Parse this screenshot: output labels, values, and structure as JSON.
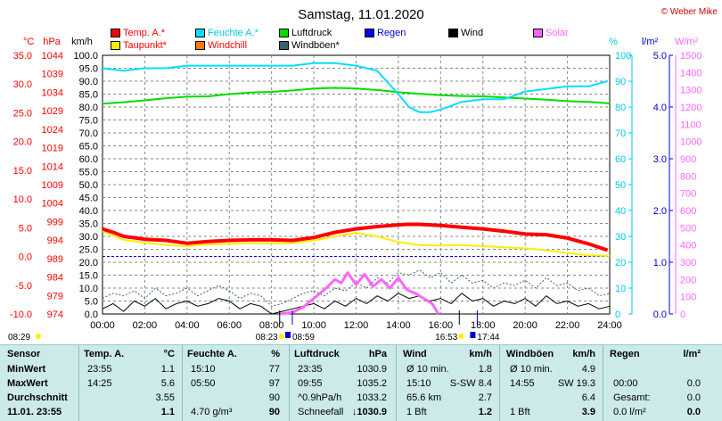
{
  "title": "Samstag, 11.01.2020",
  "copyright": "© Weber Mike",
  "colors": {
    "temp": "#ff0000",
    "humidity": "#00e0ff",
    "pressure": "#00dd00",
    "rain": "#0000ff",
    "wind": "#000000",
    "solar": "#ff66ff",
    "dewpoint": "#ffee00",
    "windchill": "#ff7700",
    "gust": "#336666"
  },
  "legend": [
    {
      "label": "Temp. A.*",
      "color": "#ff0000",
      "text_color": "#ff0000"
    },
    {
      "label": "Feuchte A.*",
      "color": "#00e0ff",
      "text_color": "#00c8e8"
    },
    {
      "label": "Luftdruck",
      "color": "#00dd00",
      "text_color": "#000000"
    },
    {
      "label": "Regen",
      "color": "#0000ff",
      "text_color": "#0000cc"
    },
    {
      "label": "Wind",
      "color": "#000000",
      "text_color": "#000000"
    },
    {
      "label": "Solar",
      "color": "#ff66ff",
      "text_color": "#ff66ff"
    },
    {
      "label": "Taupunkt*",
      "color": "#ffee00",
      "text_color": "#ff0000"
    },
    {
      "label": "Windchill",
      "color": "#ff7700",
      "text_color": "#ff0000"
    },
    {
      "label": "Windböen*",
      "color": "#336666",
      "text_color": "#000000"
    }
  ],
  "units": {
    "temp": "°C",
    "pressure": "hPa",
    "wind": "km/h",
    "humidity": "%",
    "rain": "l/m²",
    "solar": "W/m²"
  },
  "chart_data": {
    "type": "line",
    "x_ticks": [
      "00:00",
      "02:00",
      "04:00",
      "06:00",
      "08:00",
      "10:00",
      "12:00",
      "14:00",
      "16:00",
      "18:00",
      "20:00",
      "22:00",
      "24:00"
    ],
    "axes": {
      "temp": {
        "unit": "°C",
        "min": -10,
        "max": 35,
        "ticks": [
          "35.0",
          "30.0",
          "25.0",
          "20.0",
          "15.0",
          "10.0",
          "5.0",
          "0.0",
          "-5.0",
          "-10.0"
        ]
      },
      "pressure": {
        "unit": "hPa",
        "min": 974,
        "max": 1044,
        "ticks": [
          "1044",
          "1039",
          "1034",
          "1029",
          "1024",
          "1019",
          "1014",
          "1009",
          "1004",
          "999",
          "994",
          "989",
          "984",
          "979",
          "974"
        ]
      },
      "wind": {
        "unit": "km/h",
        "min": 0,
        "max": 100,
        "ticks": [
          "100.0",
          "95.0",
          "90.0",
          "85.0",
          "80.0",
          "75.0",
          "70.0",
          "65.0",
          "60.0",
          "55.0",
          "50.0",
          "45.0",
          "40.0",
          "35.0",
          "30.0",
          "25.0",
          "20.0",
          "15.0",
          "10.0",
          "5.0",
          "0.0"
        ]
      },
      "humidity": {
        "unit": "%",
        "min": 0,
        "max": 100,
        "ticks": [
          "100",
          "90",
          "80",
          "70",
          "60",
          "50",
          "40",
          "30",
          "20",
          "10",
          "0"
        ]
      },
      "rain": {
        "unit": "l/m²",
        "min": 0,
        "max": 5,
        "ticks": [
          "5.0",
          "4.0",
          "3.0",
          "2.0",
          "1.0",
          "0.0"
        ]
      },
      "solar": {
        "unit": "W/m²",
        "min": 0,
        "max": 1500,
        "ticks": [
          "1500",
          "1400",
          "1300",
          "1200",
          "1100",
          "1000",
          "900",
          "800",
          "700",
          "600",
          "500",
          "400",
          "300",
          "200",
          "100",
          "0"
        ]
      }
    },
    "series": [
      {
        "name": "Temp. A.",
        "axis": "temp",
        "x": [
          0,
          0.5,
          1,
          2,
          3,
          4,
          5,
          6,
          7,
          8,
          9,
          10,
          11,
          12,
          13,
          14,
          14.4,
          15,
          16,
          17,
          18,
          19,
          20,
          21,
          22,
          23,
          23.9
        ],
        "values": [
          4.8,
          4.2,
          3.5,
          3.0,
          2.8,
          2.3,
          2.6,
          2.8,
          2.9,
          2.9,
          2.8,
          3.3,
          4.2,
          4.8,
          5.2,
          5.5,
          5.6,
          5.6,
          5.4,
          5.1,
          4.8,
          4.4,
          3.9,
          3.8,
          3.2,
          2.2,
          1.1
        ]
      },
      {
        "name": "Taupunkt",
        "axis": "temp",
        "x": [
          0,
          1,
          2,
          3,
          4,
          5,
          6,
          7,
          8,
          9,
          10,
          11,
          12,
          13,
          14,
          15,
          16,
          17,
          18,
          19,
          20,
          21,
          22,
          23,
          24
        ],
        "values": [
          4.4,
          2.9,
          2.4,
          2.0,
          1.8,
          2.1,
          2.2,
          2.3,
          2.3,
          2.3,
          2.8,
          3.5,
          4.1,
          3.5,
          2.5,
          2.0,
          1.9,
          2.0,
          1.8,
          1.6,
          1.4,
          1.1,
          0.6,
          0.2,
          0.1
        ]
      },
      {
        "name": "Feuchte A.",
        "axis": "humidity",
        "x": [
          0,
          1,
          2,
          3,
          4,
          5,
          6,
          7,
          8,
          9,
          10,
          11,
          12,
          13,
          14,
          14.5,
          15,
          15.5,
          16,
          17,
          18,
          19,
          20,
          21,
          22,
          23,
          23.9
        ],
        "values": [
          95,
          94,
          95,
          95,
          96,
          96,
          96,
          96,
          96,
          96,
          97,
          97,
          96,
          94,
          85,
          80,
          78,
          78,
          79,
          82,
          83,
          83,
          86,
          87,
          88,
          88,
          90
        ]
      },
      {
        "name": "Luftdruck",
        "axis": "pressure",
        "x": [
          0,
          1,
          2,
          3,
          4,
          5,
          6,
          7,
          8,
          9,
          10,
          11,
          12,
          13,
          14,
          15,
          16,
          17,
          18,
          19,
          20,
          21,
          22,
          23,
          24
        ],
        "values": [
          1030.9,
          1031.3,
          1031.8,
          1032.4,
          1032.8,
          1032.9,
          1033.5,
          1033.9,
          1034.1,
          1034.5,
          1035.0,
          1035.2,
          1035.0,
          1034.6,
          1034.0,
          1033.6,
          1033.2,
          1033.0,
          1032.9,
          1032.6,
          1032.3,
          1032.0,
          1031.6,
          1031.4,
          1031.0
        ]
      },
      {
        "name": "Solar",
        "axis": "solar",
        "x": [
          8.4,
          9.0,
          9.5,
          10.0,
          10.5,
          11.0,
          11.3,
          11.6,
          12.0,
          12.4,
          12.8,
          13.2,
          13.6,
          14.0,
          14.4,
          14.8,
          15.2,
          15.6,
          15.9
        ],
        "values": [
          0,
          10,
          40,
          90,
          140,
          200,
          180,
          240,
          170,
          230,
          160,
          200,
          150,
          210,
          140,
          120,
          90,
          60,
          0
        ]
      },
      {
        "name": "Wind",
        "axis": "wind",
        "x": [
          0,
          0.5,
          1,
          1.5,
          2,
          2.5,
          3,
          3.5,
          4,
          4.5,
          5,
          5.5,
          6,
          6.5,
          7,
          7.5,
          8,
          8.5,
          9,
          9.5,
          10,
          10.5,
          11,
          11.5,
          12,
          12.5,
          13,
          13.5,
          14,
          14.5,
          15,
          15.5,
          16,
          16.5,
          17,
          17.5,
          18,
          18.5,
          19,
          19.5,
          20,
          20.5,
          21,
          21.5,
          22,
          22.5,
          23,
          23.5,
          24
        ],
        "values": [
          2,
          4,
          1,
          5,
          3,
          6,
          2,
          4,
          5,
          3,
          4,
          6,
          5,
          2,
          4,
          3,
          0,
          1,
          2,
          3,
          4,
          2,
          5,
          3,
          6,
          4,
          7,
          5,
          8,
          6,
          7,
          5,
          6,
          4,
          8,
          5,
          6,
          3,
          5,
          4,
          6,
          3,
          7,
          4,
          5,
          3,
          4,
          2,
          3
        ]
      },
      {
        "name": "Windböen",
        "axis": "wind",
        "x": [
          0,
          0.5,
          1,
          1.5,
          2,
          2.5,
          3,
          3.5,
          4,
          4.5,
          5,
          5.5,
          6,
          6.5,
          7,
          7.5,
          8,
          8.5,
          9,
          9.5,
          10,
          10.5,
          11,
          11.5,
          12,
          12.5,
          13,
          13.5,
          14,
          14.5,
          15,
          15.5,
          16,
          16.5,
          17,
          17.5,
          18,
          18.5,
          19,
          19.5,
          20,
          20.5,
          21,
          21.5,
          22,
          22.5,
          23,
          23.5,
          24
        ],
        "values": [
          6,
          8,
          7,
          9,
          6,
          10,
          7,
          8,
          10,
          7,
          9,
          11,
          9,
          6,
          8,
          7,
          3,
          4,
          6,
          8,
          9,
          7,
          10,
          9,
          12,
          10,
          14,
          12,
          16,
          15,
          17,
          14,
          16,
          12,
          15,
          12,
          13,
          10,
          12,
          11,
          13,
          10,
          14,
          11,
          12,
          9,
          10,
          7,
          8
        ]
      }
    ],
    "markers": {
      "sunrise": "08:23",
      "sunset": "16:53",
      "moonrise": "08:59",
      "moonset": "17:44",
      "left_time": "08:29"
    }
  },
  "stats": {
    "sensor": {
      "header": "Sensor",
      "rows": [
        "MinWert",
        "MaxWert",
        "Durchschnitt",
        "11.01. 23:55"
      ]
    },
    "temp": {
      "header": "Temp. A.",
      "unit": "°C",
      "rows": [
        [
          "23:55",
          "1.1"
        ],
        [
          "14:25",
          "5.6"
        ],
        [
          "",
          "3.55"
        ],
        [
          "",
          "1.1"
        ]
      ]
    },
    "humidity": {
      "header": "Feuchte A.",
      "unit": "%",
      "rows": [
        [
          "15:10",
          "77"
        ],
        [
          "05:50",
          "97"
        ],
        [
          "",
          "90"
        ],
        [
          "4.70 g/m³",
          "90"
        ]
      ]
    },
    "pressure": {
      "header": "Luftdruck",
      "unit": "hPa",
      "rows": [
        [
          "23:35",
          "1030.9"
        ],
        [
          "09:55",
          "1035.2"
        ],
        [
          "^0.9hPa/h",
          "1033.2"
        ],
        [
          "Schneefall",
          "↓1030.9"
        ]
      ]
    },
    "wind": {
      "header": "Wind",
      "unit": "km/h",
      "rows": [
        [
          "Ø 10 min.",
          "1.8"
        ],
        [
          "15:10",
          "S-SW 8.4"
        ],
        [
          "65.6 km",
          "2.7"
        ],
        [
          "1 Bft",
          "1.2"
        ]
      ]
    },
    "gust": {
      "header": "Windböen",
      "unit": "km/h",
      "rows": [
        [
          "Ø 10 min.",
          "4.9"
        ],
        [
          "14:55",
          "SW 19.3"
        ],
        [
          "",
          "6.4"
        ],
        [
          "1 Bft",
          "3.9"
        ]
      ]
    },
    "rain": {
      "header": "Regen",
      "unit": "l/m²",
      "rows": [
        [
          "",
          ""
        ],
        [
          "00:00",
          "0.0"
        ],
        [
          "Gesamt:",
          "0.0"
        ],
        [
          "0.0 l/m²",
          "0.0"
        ]
      ]
    }
  }
}
